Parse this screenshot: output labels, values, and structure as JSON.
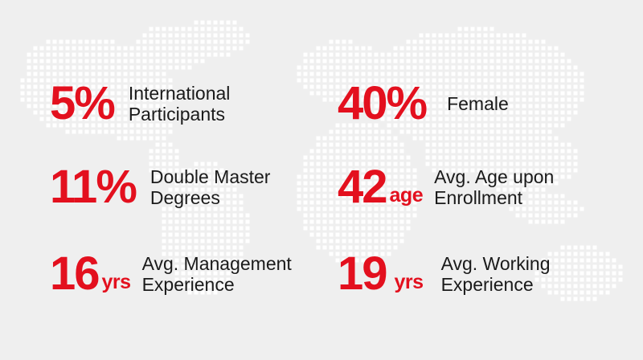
{
  "stats": [
    {
      "value": "5%",
      "unit": "",
      "label_line1": "International",
      "label_line2": "Participants"
    },
    {
      "value": "40%",
      "unit": "",
      "label_line1": "Female",
      "label_line2": ""
    },
    {
      "value": "11%",
      "unit": "",
      "label_line1": "Double Master",
      "label_line2": "Degrees"
    },
    {
      "value": "42",
      "unit": "age",
      "label_line1": "Avg. Age upon",
      "label_line2": "Enrollment"
    },
    {
      "value": "16",
      "unit": "yrs",
      "label_line1": "Avg. Management",
      "label_line2": "Experience"
    },
    {
      "value": "19",
      "unit": "yrs",
      "label_line1": "Avg. Working",
      "label_line2": "Experience"
    }
  ],
  "colors": {
    "accent": "#e3101e",
    "text": "#1a1a1a",
    "background": "#efefef",
    "map_dots": "#ffffff"
  },
  "background_graphic": "world-map-dots"
}
